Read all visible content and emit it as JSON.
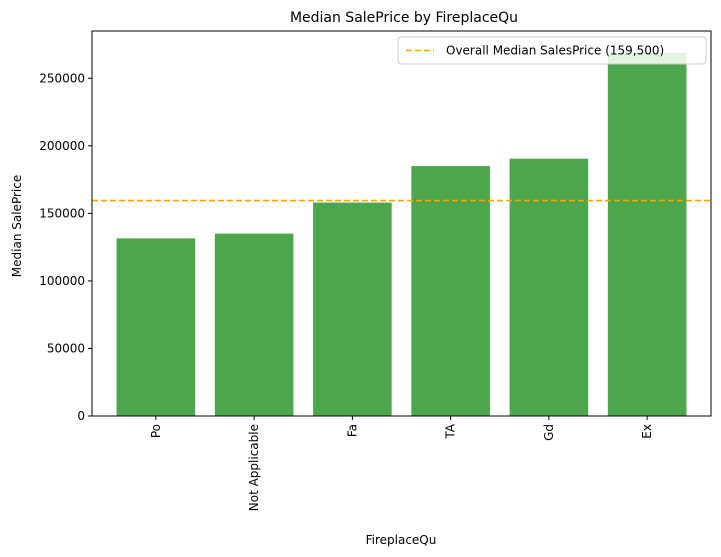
{
  "chart_data": {
    "type": "bar",
    "title": "Median SalePrice by FireplaceQu",
    "xlabel": "FireplaceQu",
    "ylabel": "Median SalePrice",
    "categories": [
      "Po",
      "Not Applicable",
      "Fa",
      "TA",
      "Gd",
      "Ex"
    ],
    "values": [
      131500,
      135000,
      158000,
      185000,
      190500,
      269000
    ],
    "ylim": [
      0,
      285000
    ],
    "yticks": [
      0,
      50000,
      100000,
      150000,
      200000,
      250000
    ],
    "ytick_labels": [
      "0",
      "50000",
      "100000",
      "150000",
      "200000",
      "250000"
    ],
    "bar_color": "#4ca64c",
    "reference_line": {
      "value": 159500,
      "label": "Overall Median SalesPrice (159,500)",
      "color": "#ffa500",
      "style": "dashed"
    },
    "legend": {
      "placement": "top-right"
    },
    "grid": false
  }
}
